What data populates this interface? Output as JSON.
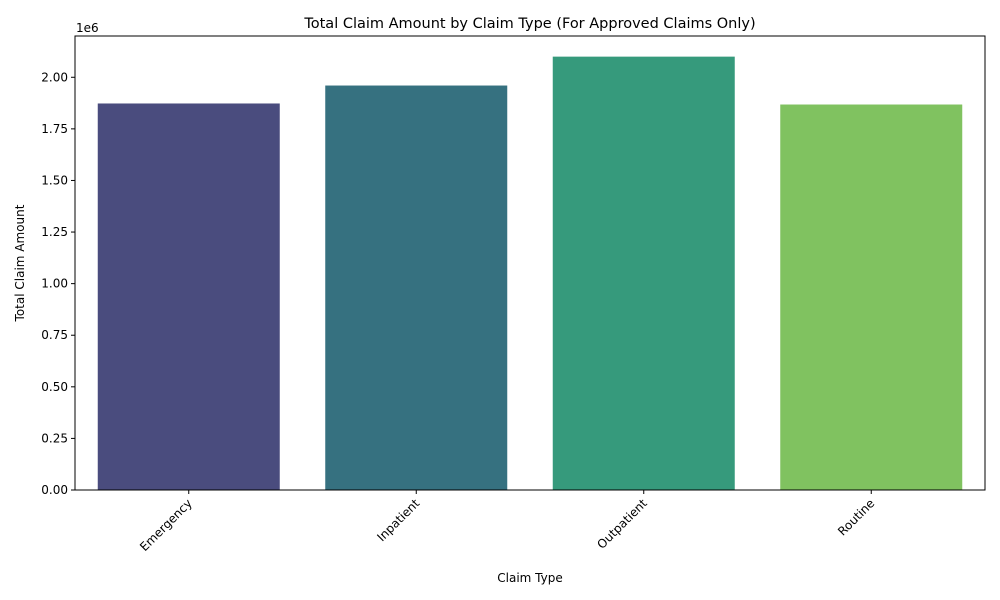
{
  "chart_data": {
    "type": "bar",
    "title": "Total Claim Amount by Claim Type (For Approved Claims Only)",
    "xlabel": "Claim Type",
    "ylabel": "Total Claim Amount",
    "offset_label": "1e6",
    "categories": [
      "Emergency",
      "Inpatient",
      "Outpatient",
      "Routine"
    ],
    "values": [
      1873000,
      1960000,
      2100000,
      1868000
    ],
    "ylim": [
      0,
      2200000
    ],
    "yticks": [
      0,
      250000,
      500000,
      750000,
      1000000,
      1250000,
      1500000,
      1750000,
      2000000
    ],
    "ytick_labels": [
      "0.00",
      "0.25",
      "0.50",
      "0.75",
      "1.00",
      "1.25",
      "1.50",
      "1.75",
      "2.00"
    ],
    "colors": [
      "#4a4c7e",
      "#367180",
      "#369a7c",
      "#80c260"
    ],
    "grid": false,
    "legend": "none"
  }
}
